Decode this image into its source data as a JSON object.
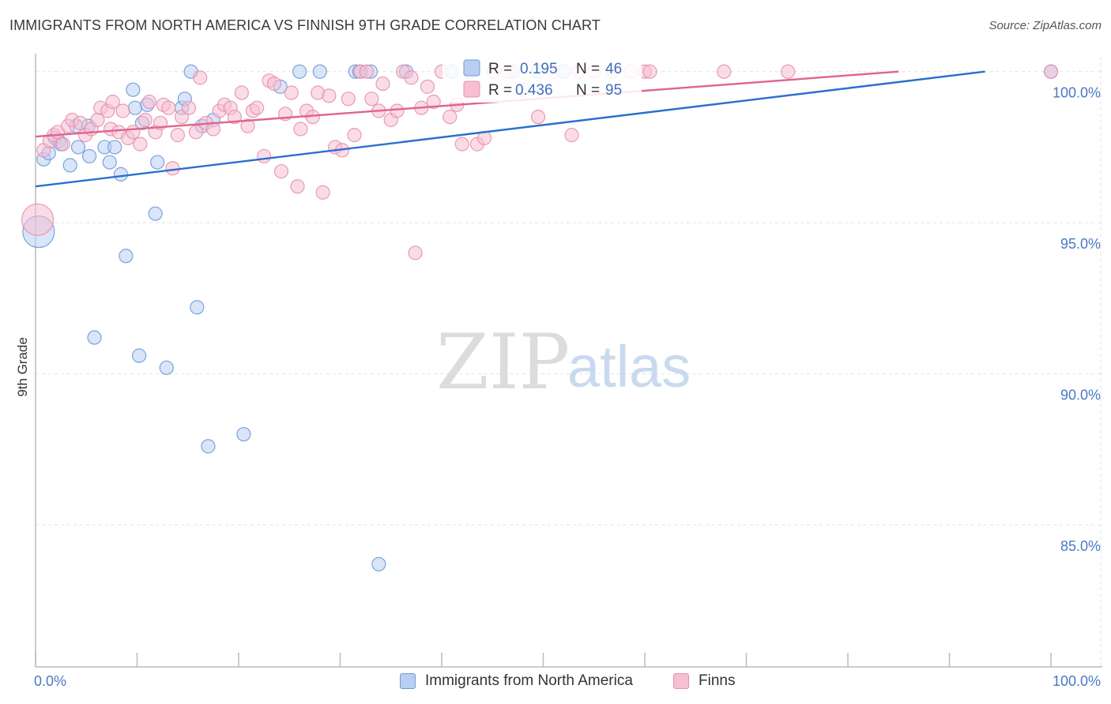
{
  "title": "IMMIGRANTS FROM NORTH AMERICA VS FINNISH 9TH GRADE CORRELATION CHART",
  "source": "Source: ZipAtlas.com",
  "watermark": {
    "zip": "ZIP",
    "atlas": "atlas"
  },
  "colors": {
    "blue_fill": "#b9cff2",
    "blue_stroke": "#6f9ad8",
    "blue_line": "#2a6fd0",
    "pink_fill": "#f6c0d2",
    "pink_stroke": "#e890ae",
    "pink_line": "#e0638e",
    "tick_text": "#4a78c4",
    "grid": "#e2e2e2"
  },
  "legend_top": [
    {
      "r_label": "R = ",
      "r_value": "0.195",
      "n_label": "N = ",
      "n_value": "46",
      "series": "blue"
    },
    {
      "r_label": "R = ",
      "r_value": "0.436",
      "n_label": "N = ",
      "n_value": "95",
      "series": "pink"
    }
  ],
  "legend_bottom": [
    {
      "label": "Immigrants from North America",
      "series": "blue"
    },
    {
      "label": "Finns",
      "series": "pink"
    }
  ],
  "chart_data": {
    "type": "scatter",
    "title": "IMMIGRANTS FROM NORTH AMERICA VS FINNISH 9TH GRADE CORRELATION CHART",
    "xlabel": "",
    "ylabel": "9th Grade",
    "xlim": [
      0,
      100
    ],
    "ylim": [
      80.3,
      100.75
    ],
    "x_tick_labels": [
      "0.0%",
      "100.0%"
    ],
    "y_ticks": [
      85,
      90,
      95,
      100
    ],
    "y_tick_labels": [
      "85.0%",
      "90.0%",
      "95.0%",
      "100.0%"
    ],
    "grid": true,
    "series": [
      {
        "name": "Immigrants from North America",
        "color": "blue",
        "R": 0.195,
        "N": 46,
        "trend": {
          "x": [
            0,
            93.5
          ],
          "y": [
            96.2,
            100
          ]
        },
        "points": [
          [
            0.3,
            94.7,
            "big"
          ],
          [
            0.8,
            97.1
          ],
          [
            1.3,
            97.3
          ],
          [
            1.9,
            97.8
          ],
          [
            2.3,
            97.7
          ],
          [
            2.5,
            97.6
          ],
          [
            3.4,
            96.9
          ],
          [
            4.0,
            98.2
          ],
          [
            4.2,
            97.5
          ],
          [
            5.2,
            98.2
          ],
          [
            5.3,
            97.2
          ],
          [
            6.8,
            97.5
          ],
          [
            7.3,
            97.0
          ],
          [
            7.8,
            97.5
          ],
          [
            8.4,
            96.6
          ],
          [
            8.9,
            93.9
          ],
          [
            9.6,
            99.4
          ],
          [
            9.8,
            98.8
          ],
          [
            10.5,
            98.3
          ],
          [
            11.0,
            98.9
          ],
          [
            11.8,
            95.3
          ],
          [
            12.0,
            97.0
          ],
          [
            12.9,
            90.2
          ],
          [
            10.2,
            90.6
          ],
          [
            5.8,
            91.2
          ],
          [
            14.4,
            98.8
          ],
          [
            14.7,
            99.1
          ],
          [
            15.3,
            100.0
          ],
          [
            15.9,
            92.2
          ],
          [
            16.4,
            98.2
          ],
          [
            17.0,
            87.6
          ],
          [
            17.5,
            98.4
          ],
          [
            20.5,
            88.0
          ],
          [
            24.1,
            99.5
          ],
          [
            26.0,
            100.0
          ],
          [
            28.0,
            100.0
          ],
          [
            31.5,
            100.0
          ],
          [
            31.9,
            100.0
          ],
          [
            33.0,
            100.0
          ],
          [
            33.8,
            83.7
          ],
          [
            36.5,
            100.0
          ],
          [
            41.0,
            100.0
          ],
          [
            47.0,
            100.0
          ],
          [
            49.5,
            100.0
          ],
          [
            52.0,
            100.0
          ],
          [
            100.0,
            100.0
          ]
        ]
      },
      {
        "name": "Finns",
        "color": "pink",
        "R": 0.436,
        "N": 95,
        "trend": {
          "x": [
            0,
            85
          ],
          "y": [
            97.85,
            100
          ]
        },
        "points": [
          [
            0.2,
            95.1,
            "big"
          ],
          [
            0.8,
            97.4
          ],
          [
            1.4,
            97.7
          ],
          [
            1.8,
            97.9
          ],
          [
            2.2,
            98.0
          ],
          [
            2.7,
            97.6
          ],
          [
            3.2,
            98.2
          ],
          [
            3.6,
            98.4
          ],
          [
            4.4,
            98.3
          ],
          [
            4.9,
            97.9
          ],
          [
            5.5,
            98.1
          ],
          [
            6.1,
            98.4
          ],
          [
            6.4,
            98.8
          ],
          [
            7.1,
            98.7
          ],
          [
            7.4,
            98.1
          ],
          [
            7.6,
            99.0
          ],
          [
            8.2,
            98.0
          ],
          [
            8.6,
            98.7
          ],
          [
            9.1,
            97.8
          ],
          [
            9.6,
            98.0
          ],
          [
            10.3,
            97.6
          ],
          [
            10.8,
            98.4
          ],
          [
            11.2,
            99.0
          ],
          [
            11.8,
            98.0
          ],
          [
            12.3,
            98.3
          ],
          [
            12.6,
            98.9
          ],
          [
            13.1,
            98.8
          ],
          [
            13.5,
            96.8
          ],
          [
            14.0,
            97.9
          ],
          [
            14.4,
            98.5
          ],
          [
            15.1,
            98.8
          ],
          [
            15.8,
            98.0
          ],
          [
            16.2,
            99.8
          ],
          [
            16.8,
            98.3
          ],
          [
            17.5,
            98.1
          ],
          [
            18.1,
            98.7
          ],
          [
            18.6,
            98.9
          ],
          [
            19.2,
            98.8
          ],
          [
            19.6,
            98.5
          ],
          [
            20.3,
            99.3
          ],
          [
            20.9,
            98.2
          ],
          [
            21.4,
            98.7
          ],
          [
            21.8,
            98.8
          ],
          [
            22.5,
            97.2
          ],
          [
            23.0,
            99.7
          ],
          [
            23.5,
            99.6
          ],
          [
            24.2,
            96.7
          ],
          [
            24.6,
            98.6
          ],
          [
            25.2,
            99.3
          ],
          [
            25.8,
            96.2
          ],
          [
            26.1,
            98.1
          ],
          [
            26.7,
            98.7
          ],
          [
            27.3,
            98.5
          ],
          [
            27.8,
            99.3
          ],
          [
            28.3,
            96.0
          ],
          [
            28.9,
            99.2
          ],
          [
            29.5,
            97.5
          ],
          [
            30.2,
            97.4
          ],
          [
            30.8,
            99.1
          ],
          [
            31.4,
            97.9
          ],
          [
            32.0,
            100.0
          ],
          [
            32.6,
            100.0
          ],
          [
            33.1,
            99.1
          ],
          [
            33.8,
            98.7
          ],
          [
            34.2,
            99.6
          ],
          [
            35.0,
            98.4
          ],
          [
            35.6,
            98.7
          ],
          [
            36.2,
            100.0
          ],
          [
            37.0,
            99.8
          ],
          [
            37.4,
            94.0
          ],
          [
            38.0,
            98.8
          ],
          [
            38.6,
            99.5
          ],
          [
            39.2,
            99.0
          ],
          [
            40.0,
            100.0
          ],
          [
            40.8,
            98.5
          ],
          [
            41.5,
            98.9
          ],
          [
            42.0,
            97.6
          ],
          [
            42.8,
            100.0
          ],
          [
            43.5,
            97.6
          ],
          [
            44.2,
            97.8
          ],
          [
            45.1,
            100.0
          ],
          [
            46.5,
            100.0
          ],
          [
            48.0,
            99.4
          ],
          [
            49.5,
            98.5
          ],
          [
            51.0,
            100.0
          ],
          [
            52.8,
            97.9
          ],
          [
            53.5,
            100.0
          ],
          [
            55.0,
            100.0
          ],
          [
            56.8,
            100.0
          ],
          [
            58.6,
            100.0
          ],
          [
            60.0,
            100.0
          ],
          [
            60.5,
            100.0
          ],
          [
            67.8,
            100.0
          ],
          [
            74.1,
            100.0
          ],
          [
            100.0,
            100.0
          ]
        ]
      }
    ]
  }
}
